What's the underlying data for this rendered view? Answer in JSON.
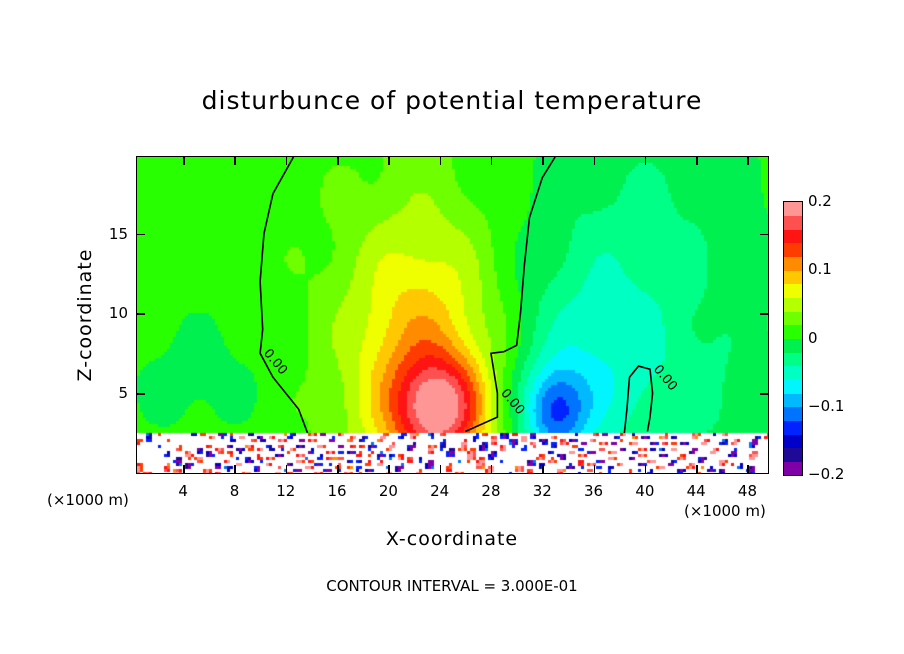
{
  "chart_data": {
    "type": "heatmap",
    "subtype": "filled-contour",
    "title": "disturbunce of potential temperature",
    "xlabel": "X-coordinate",
    "ylabel": "Z-coordinate",
    "x_unit_left": "(×1000 m)",
    "x_unit_right": "(×1000 m)",
    "footer": "CONTOUR INTERVAL = 3.000E-01",
    "xlim": [
      0.4,
      49.6
    ],
    "ylim": [
      0,
      19.8
    ],
    "xticks": [
      4,
      8,
      12,
      16,
      20,
      24,
      28,
      32,
      36,
      40,
      44,
      48
    ],
    "yticks": [
      5,
      10,
      15
    ],
    "colorbar": {
      "range": [
        -0.2,
        0.2
      ],
      "step": 0.02,
      "tick_values": [
        0.2,
        0.1,
        0,
        -0.1,
        -0.2
      ],
      "tick_labels": [
        "0.2",
        "0.1",
        "0",
        "−0.1",
        "−0.2"
      ],
      "colors_bottom_to_top": [
        "#8000a8",
        "#1e0a96",
        "#0000c8",
        "#0023ff",
        "#0073ff",
        "#00b9ff",
        "#00f5ff",
        "#00ffc3",
        "#00ff87",
        "#00f050",
        "#28ff00",
        "#6eff00",
        "#b4ff00",
        "#f0ff00",
        "#ffc800",
        "#ff8c00",
        "#ff3c00",
        "#ff1414",
        "#ff5050",
        "#ff9696"
      ]
    },
    "field_features": {
      "background": 0.012,
      "surface_layer_top_z": 2.5,
      "blobs": [
        {
          "x": 24,
          "z": 4,
          "amp": 0.13,
          "sx": 2.4,
          "sz": 2.2
        },
        {
          "x": 22.5,
          "z": 7,
          "amp": 0.09,
          "sx": 4.2,
          "sz": 6.5
        },
        {
          "x": 33,
          "z": 3.8,
          "amp": -0.1,
          "sx": 1.8,
          "sz": 2.0
        },
        {
          "x": 36,
          "z": 6,
          "amp": -0.05,
          "sx": 4.5,
          "sz": 5
        },
        {
          "x": 40,
          "z": 14,
          "amp": -0.035,
          "sx": 7,
          "sz": 8
        },
        {
          "x": 5,
          "z": 6,
          "amp": -0.02,
          "sx": 4,
          "sz": 3
        },
        {
          "x": 47,
          "z": 4,
          "amp": -0.02,
          "sx": 4,
          "sz": 3
        }
      ]
    },
    "contours": [
      {
        "level": 0.0,
        "label": "0.00",
        "points": [
          [
            13.7,
            2.5
          ],
          [
            13,
            4
          ],
          [
            11,
            6
          ],
          [
            10,
            7.5
          ],
          [
            10.2,
            9
          ],
          [
            10,
            12
          ],
          [
            10.3,
            15
          ],
          [
            11,
            17.5
          ],
          [
            12.6,
            19.8
          ]
        ]
      },
      {
        "level": 0.0,
        "label": "0.00",
        "points": [
          [
            26,
            2.6
          ],
          [
            28.5,
            3.5
          ],
          [
            28.5,
            5
          ],
          [
            28,
            7.5
          ],
          [
            29,
            7.6
          ],
          [
            30,
            8
          ],
          [
            30.3,
            10
          ],
          [
            30.6,
            13
          ],
          [
            31,
            16
          ],
          [
            32,
            18.5
          ],
          [
            33,
            19.8
          ]
        ]
      },
      {
        "level": 0.0,
        "label": "0.00",
        "points": [
          [
            38.4,
            2.5
          ],
          [
            38.6,
            4
          ],
          [
            38.8,
            6
          ],
          [
            39.5,
            6.7
          ],
          [
            40.4,
            6.5
          ],
          [
            40.6,
            5
          ],
          [
            40.4,
            3.5
          ],
          [
            40.2,
            2.6
          ]
        ]
      }
    ]
  }
}
